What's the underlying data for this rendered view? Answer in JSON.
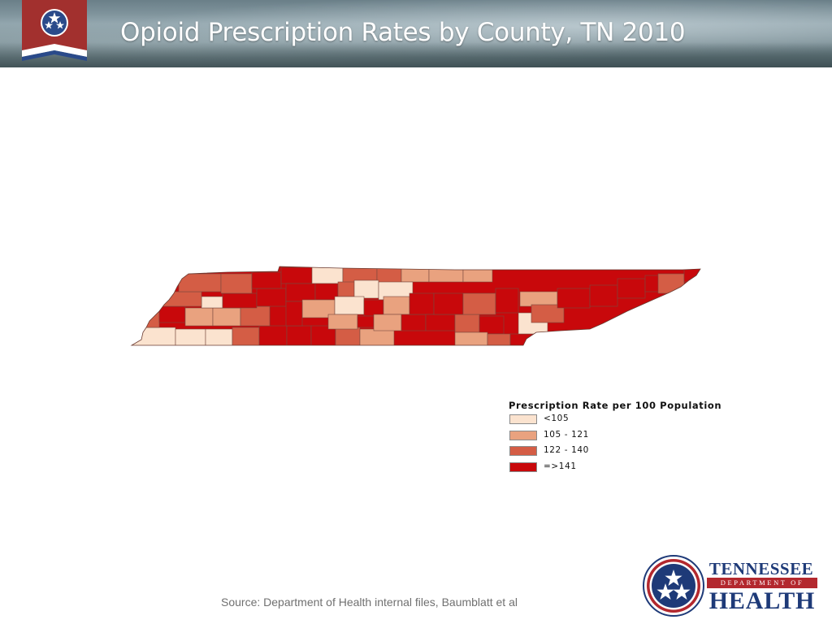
{
  "header": {
    "title": "Opioid Prescription Rates by County, TN 2010",
    "banner_icon": "tennessee-tristar-banner-icon"
  },
  "map": {
    "region": "Tennessee counties",
    "outline_color": "#7a4a40"
  },
  "legend": {
    "title": "Prescription Rate per 100 Population",
    "items": [
      {
        "label": "<105",
        "color": "#fbe3cf"
      },
      {
        "label": "105 - 121",
        "color": "#e9a27f"
      },
      {
        "label": "122 - 140",
        "color": "#d45d45"
      },
      {
        "label": "=>141",
        "color": "#c8080b"
      }
    ]
  },
  "footer": {
    "source": "Source: Department of Health internal files, Baumblatt et al"
  },
  "logo": {
    "line1": "TENNESSEE",
    "line2": "DEPARTMENT OF",
    "line3": "HEALTH",
    "icon": "tennessee-tristar-seal-icon",
    "blue": "#1e3a78",
    "red": "#b3282e"
  }
}
